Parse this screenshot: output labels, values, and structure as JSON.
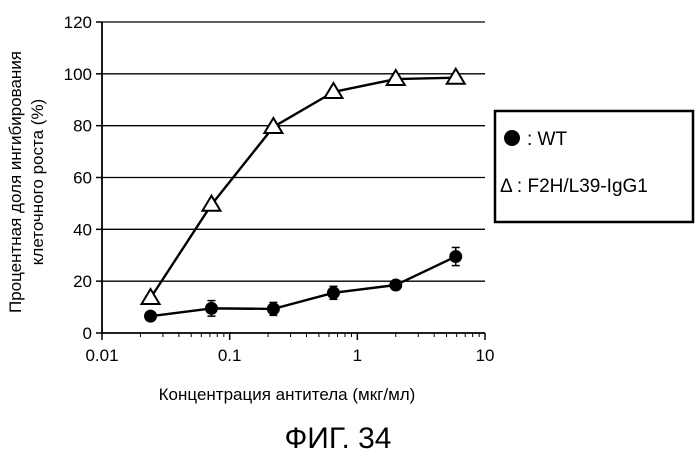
{
  "chart_data": {
    "type": "line",
    "title": "",
    "xlabel": "Концентрация антитела (мкг/мл)",
    "ylabel_lines": [
      "Процентная доля ингибирования",
      "клеточного роста (%)"
    ],
    "xscale": "log",
    "xlim": [
      0.01,
      10
    ],
    "ylim": [
      0,
      120
    ],
    "x_tick_labels": [
      "0.01",
      "0.1",
      "1",
      "10"
    ],
    "y_tick_labels": [
      "0",
      "20",
      "40",
      "60",
      "80",
      "100",
      "120"
    ],
    "grid": "horizontal",
    "legend_position": "right",
    "series": [
      {
        "name": ": WT",
        "marker": "filled-circle",
        "color": "#000000",
        "x": [
          0.024,
          0.072,
          0.22,
          0.65,
          2.0,
          5.9
        ],
        "y": [
          6.5,
          9.5,
          9.3,
          15.5,
          18.5,
          29.5
        ],
        "error": [
          1.0,
          3.0,
          2.5,
          2.5,
          1.5,
          3.5
        ]
      },
      {
        "name": "Δ : F2H/L39-IgG1",
        "marker": "open-triangle",
        "color": "#000000",
        "x": [
          0.024,
          0.072,
          0.22,
          0.65,
          2.0,
          5.9
        ],
        "y": [
          13.5,
          49.5,
          79.5,
          93.0,
          98.0,
          98.5
        ],
        "error": [
          0,
          0,
          0,
          0,
          0,
          0
        ]
      }
    ]
  },
  "caption": "ФИГ. 34"
}
